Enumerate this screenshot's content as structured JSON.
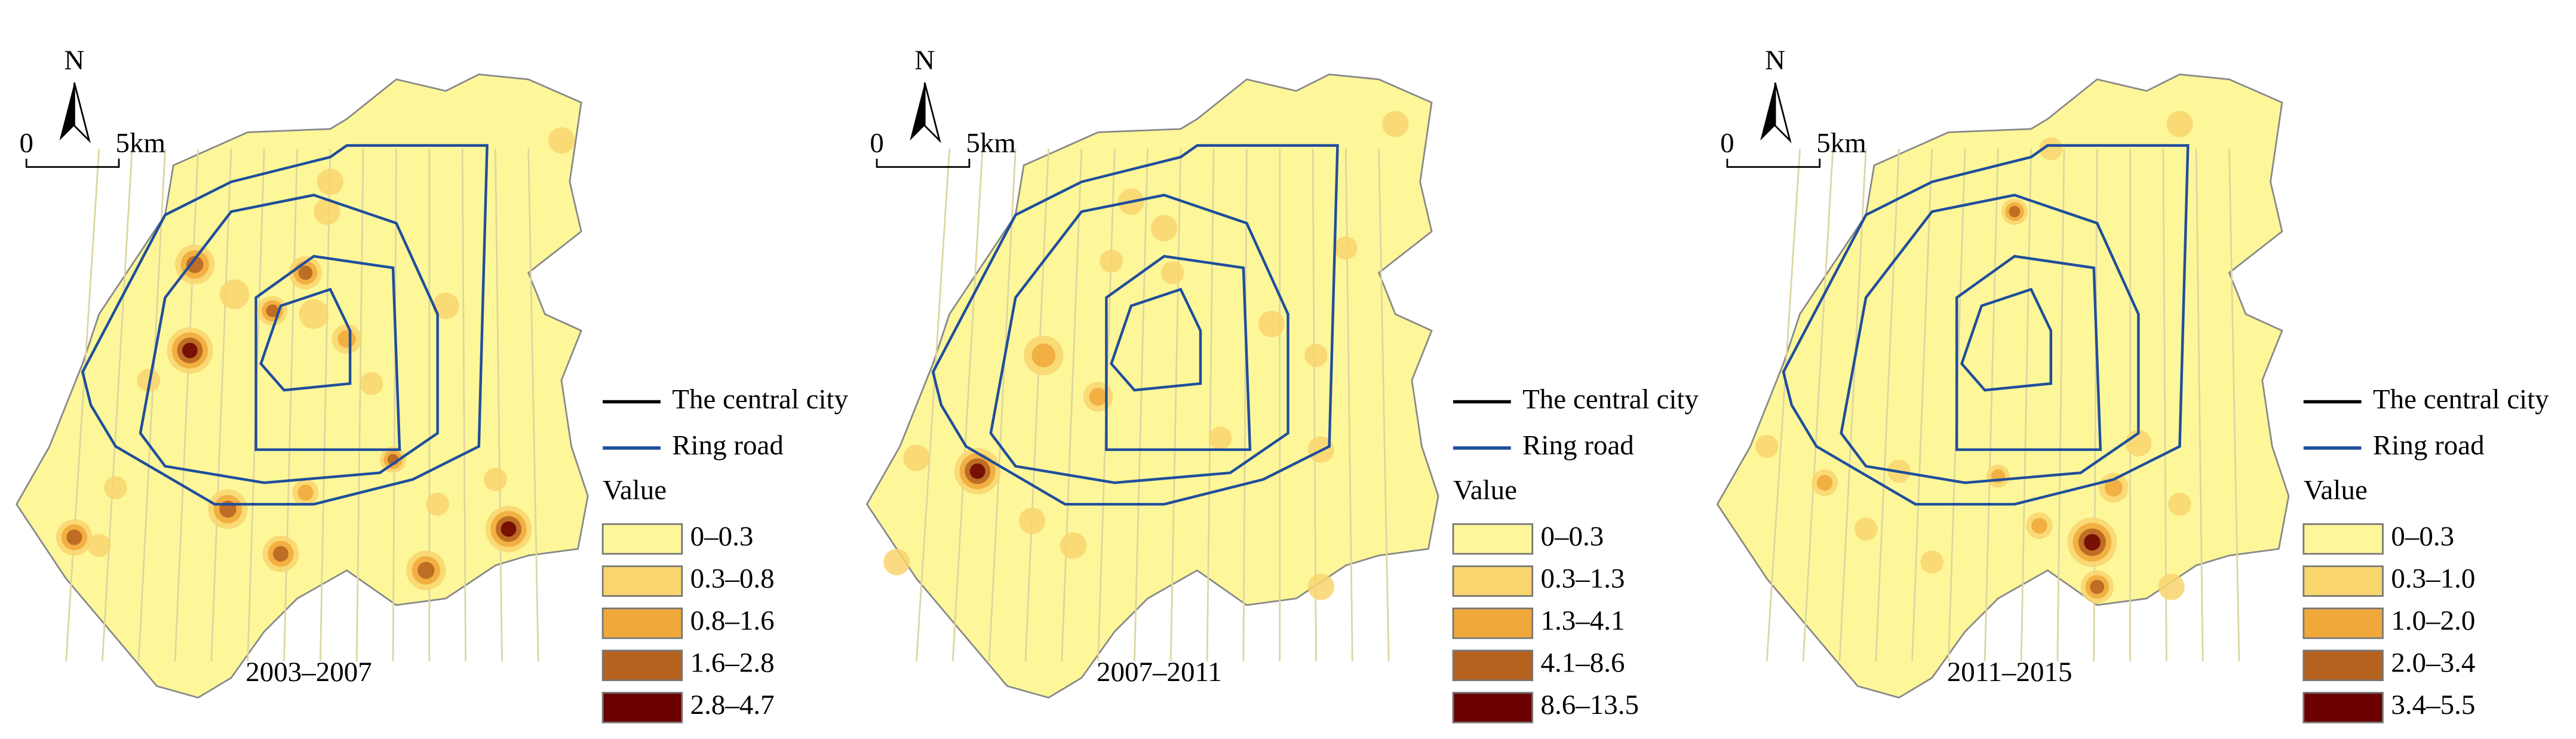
{
  "panels": [
    {
      "period": "2003–2007",
      "north": "N",
      "scale": {
        "start": "0",
        "end": "5km"
      },
      "legend": {
        "central_city": "The central city",
        "ring_road": "Ring road",
        "value_title": "Value",
        "classes": [
          "0–0.3",
          "0.3–0.8",
          "0.8–1.6",
          "1.6–2.8",
          "2.8–4.7"
        ]
      }
    },
    {
      "period": "2007–2011",
      "north": "N",
      "scale": {
        "start": "0",
        "end": "5km"
      },
      "legend": {
        "central_city": "The central city",
        "ring_road": "Ring road",
        "value_title": "Value",
        "classes": [
          "0–0.3",
          "0.3–1.3",
          "1.3–4.1",
          "4.1–8.6",
          "8.6–13.5"
        ]
      }
    },
    {
      "period": "2011–2015",
      "north": "N",
      "scale": {
        "start": "0",
        "end": "5km"
      },
      "legend": {
        "central_city": "The central city",
        "ring_road": "Ring road",
        "value_title": "Value",
        "classes": [
          "0–0.3",
          "0.3–1.0",
          "1.0–2.0",
          "2.0–3.4",
          "3.4–5.5"
        ]
      }
    }
  ]
}
